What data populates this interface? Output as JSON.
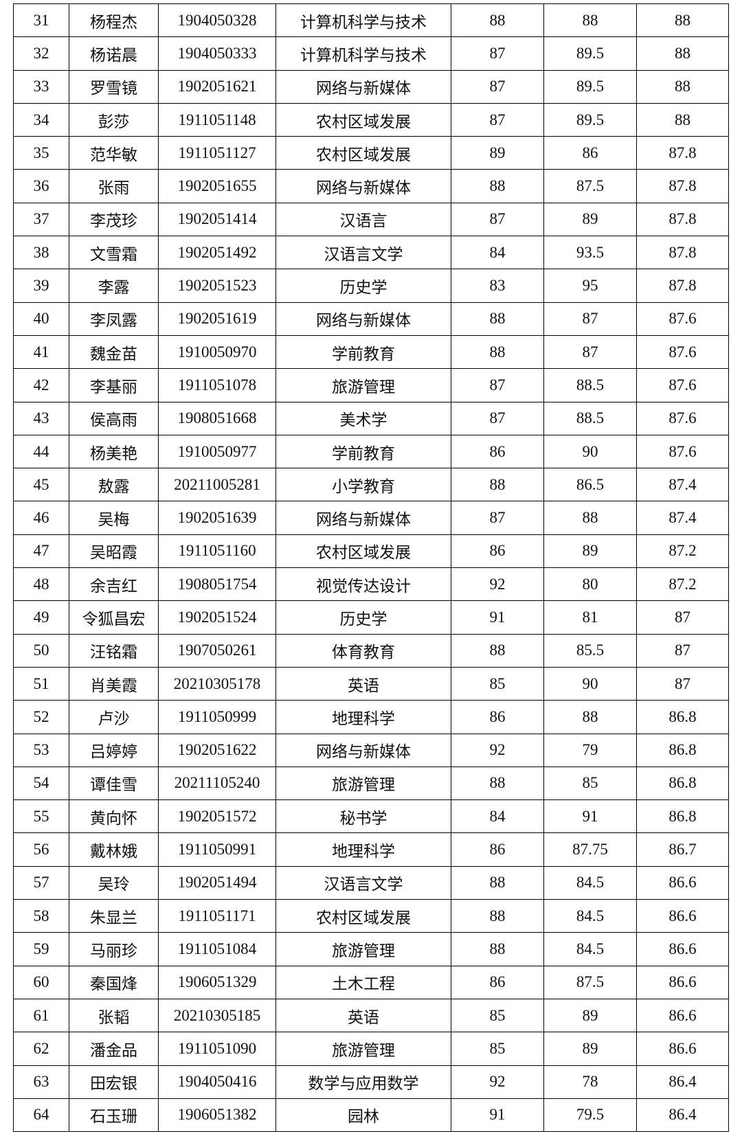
{
  "table": {
    "rows": [
      [
        "31",
        "杨程杰",
        "1904050328",
        "计算机科学与技术",
        "88",
        "88",
        "88"
      ],
      [
        "32",
        "杨诺晨",
        "1904050333",
        "计算机科学与技术",
        "87",
        "89.5",
        "88"
      ],
      [
        "33",
        "罗雪镜",
        "1902051621",
        "网络与新媒体",
        "87",
        "89.5",
        "88"
      ],
      [
        "34",
        "彭莎",
        "1911051148",
        "农村区域发展",
        "87",
        "89.5",
        "88"
      ],
      [
        "35",
        "范华敏",
        "1911051127",
        "农村区域发展",
        "89",
        "86",
        "87.8"
      ],
      [
        "36",
        "张雨",
        "1902051655",
        "网络与新媒体",
        "88",
        "87.5",
        "87.8"
      ],
      [
        "37",
        "李茂珍",
        "1902051414",
        "汉语言",
        "87",
        "89",
        "87.8"
      ],
      [
        "38",
        "文雪霜",
        "1902051492",
        "汉语言文学",
        "84",
        "93.5",
        "87.8"
      ],
      [
        "39",
        "李露",
        "1902051523",
        "历史学",
        "83",
        "95",
        "87.8"
      ],
      [
        "40",
        "李凤露",
        "1902051619",
        "网络与新媒体",
        "88",
        "87",
        "87.6"
      ],
      [
        "41",
        "魏金苗",
        "1910050970",
        "学前教育",
        "88",
        "87",
        "87.6"
      ],
      [
        "42",
        "李基丽",
        "1911051078",
        "旅游管理",
        "87",
        "88.5",
        "87.6"
      ],
      [
        "43",
        "侯高雨",
        "1908051668",
        "美术学",
        "87",
        "88.5",
        "87.6"
      ],
      [
        "44",
        "杨美艳",
        "1910050977",
        "学前教育",
        "86",
        "90",
        "87.6"
      ],
      [
        "45",
        "敖露",
        "20211005281",
        "小学教育",
        "88",
        "86.5",
        "87.4"
      ],
      [
        "46",
        "吴梅",
        "1902051639",
        "网络与新媒体",
        "87",
        "88",
        "87.4"
      ],
      [
        "47",
        "吴昭霞",
        "1911051160",
        "农村区域发展",
        "86",
        "89",
        "87.2"
      ],
      [
        "48",
        "余吉红",
        "1908051754",
        "视觉传达设计",
        "92",
        "80",
        "87.2"
      ],
      [
        "49",
        "令狐昌宏",
        "1902051524",
        "历史学",
        "91",
        "81",
        "87"
      ],
      [
        "50",
        "汪铭霜",
        "1907050261",
        "体育教育",
        "88",
        "85.5",
        "87"
      ],
      [
        "51",
        "肖美霞",
        "20210305178",
        "英语",
        "85",
        "90",
        "87"
      ],
      [
        "52",
        "卢沙",
        "1911050999",
        "地理科学",
        "86",
        "88",
        "86.8"
      ],
      [
        "53",
        "吕婷婷",
        "1902051622",
        "网络与新媒体",
        "92",
        "79",
        "86.8"
      ],
      [
        "54",
        "谭佳雪",
        "20211105240",
        "旅游管理",
        "88",
        "85",
        "86.8"
      ],
      [
        "55",
        "黄向怀",
        "1902051572",
        "秘书学",
        "84",
        "91",
        "86.8"
      ],
      [
        "56",
        "戴林娥",
        "1911050991",
        "地理科学",
        "86",
        "87.75",
        "86.7"
      ],
      [
        "57",
        "吴玲",
        "1902051494",
        "汉语言文学",
        "88",
        "84.5",
        "86.6"
      ],
      [
        "58",
        "朱显兰",
        "1911051171",
        "农村区域发展",
        "88",
        "84.5",
        "86.6"
      ],
      [
        "59",
        "马丽珍",
        "1911051084",
        "旅游管理",
        "88",
        "84.5",
        "86.6"
      ],
      [
        "60",
        "秦国烽",
        "1906051329",
        "土木工程",
        "86",
        "87.5",
        "86.6"
      ],
      [
        "61",
        "张韬",
        "20210305185",
        "英语",
        "85",
        "89",
        "86.6"
      ],
      [
        "62",
        "潘金品",
        "1911051090",
        "旅游管理",
        "85",
        "89",
        "86.6"
      ],
      [
        "63",
        "田宏银",
        "1904050416",
        "数学与应用数学",
        "92",
        "78",
        "86.4"
      ],
      [
        "64",
        "石玉珊",
        "1906051382",
        "园林",
        "91",
        "79.5",
        "86.4"
      ]
    ]
  }
}
